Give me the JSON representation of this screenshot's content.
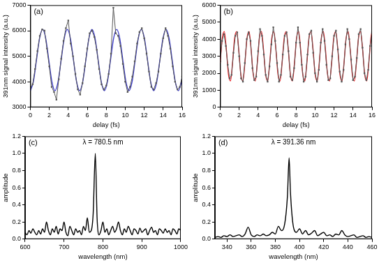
{
  "chart_data": [
    {
      "type": "line",
      "annotations": [
        "(a)"
      ],
      "x_label": "delay (fs)",
      "y_label": "391nm signal intensity (a.u.)",
      "xlim": [
        0,
        16
      ],
      "xticks": [
        0,
        2,
        4,
        6,
        8,
        10,
        12,
        14,
        16
      ],
      "ylim": [
        3000,
        7000
      ],
      "yticks": [
        3000,
        4000,
        5000,
        6000,
        7000
      ],
      "grid": false,
      "series": [
        {
          "color": "#555555",
          "marker": "square",
          "line_style": "solid",
          "x": [
            0,
            0.25,
            0.5,
            0.75,
            1,
            1.25,
            1.5,
            1.75,
            2,
            2.25,
            2.5,
            2.75,
            3,
            3.25,
            3.5,
            3.75,
            4,
            4.25,
            4.5,
            4.75,
            5,
            5.25,
            5.5,
            5.75,
            6,
            6.25,
            6.5,
            6.75,
            7,
            7.25,
            7.5,
            7.75,
            8,
            8.25,
            8.5,
            8.75,
            9,
            9.25,
            9.5,
            9.75,
            10,
            10.25,
            10.5,
            10.75,
            11,
            11.25,
            11.5,
            11.75,
            12,
            12.25,
            12.5,
            12.75,
            13,
            13.25,
            13.5,
            13.75,
            14,
            14.25,
            14.5,
            14.75,
            15,
            15.25,
            15.5,
            15.75,
            16
          ],
          "values": [
            3750,
            3900,
            4500,
            5200,
            5800,
            6050,
            6000,
            5300,
            4600,
            3800,
            3600,
            3300,
            4100,
            4900,
            5600,
            6100,
            6400,
            5500,
            5000,
            4300,
            3700,
            3500,
            3950,
            4600,
            5300,
            5900,
            6000,
            5750,
            5250,
            4500,
            3900,
            3700,
            3850,
            4300,
            5100,
            6900,
            5900,
            5800,
            5400,
            4700,
            4000,
            3600,
            3800,
            4200,
            4800,
            5500,
            5950,
            6100,
            5700,
            5100,
            4400,
            3800,
            3700,
            3950,
            4400,
            5100,
            5700,
            6100,
            5800,
            5300,
            4600,
            4000,
            3700,
            3800,
            4200
          ]
        },
        {
          "color": "#3c3cc8",
          "marker": "none",
          "line_style": "solid",
          "x": [
            0,
            0.325,
            0.65,
            0.975,
            1.3,
            1.625,
            1.95,
            2.275,
            2.6,
            2.925,
            3.25,
            3.575,
            3.9,
            4.225,
            4.55,
            4.875,
            5.2,
            5.525,
            5.85,
            6.175,
            6.5,
            6.825,
            7.15,
            7.475,
            7.8,
            8.125,
            8.45,
            8.775,
            9.1,
            9.425,
            9.75,
            10.075,
            10.4,
            10.725,
            11.05,
            11.375,
            11.7,
            12.025,
            12.35,
            12.675,
            13,
            13.325,
            13.65,
            13.975,
            14.3,
            14.625,
            14.95,
            15.275,
            15.6,
            15.925,
            16
          ],
          "values": [
            3650,
            4001,
            4850,
            5699,
            6050,
            5699,
            4850,
            4001,
            3650,
            4001,
            4850,
            5699,
            6050,
            5699,
            4850,
            4001,
            3650,
            4001,
            4850,
            5699,
            6050,
            5699,
            4850,
            4001,
            3650,
            4001,
            4850,
            5699,
            6050,
            5699,
            4850,
            4001,
            3650,
            4001,
            4850,
            5699,
            6050,
            5699,
            4850,
            4001,
            3650,
            4001,
            4850,
            5699,
            6050,
            5699,
            4850,
            4001,
            3650,
            4001,
            4168
          ]
        }
      ]
    },
    {
      "type": "line",
      "annotations": [
        "(b)"
      ],
      "x_label": "delay (fs)",
      "y_label": "391nm signal intensity (a.u.)",
      "xlim": [
        0,
        16
      ],
      "xticks": [
        0,
        2,
        4,
        6,
        8,
        10,
        12,
        14,
        16
      ],
      "ylim": [
        0,
        6000
      ],
      "yticks": [
        0,
        1000,
        2000,
        3000,
        4000,
        5000,
        6000
      ],
      "grid": false,
      "series": [
        {
          "color": "#555555",
          "marker": "square",
          "line_style": "solid",
          "x": [
            0,
            0.2,
            0.4,
            0.6,
            0.8,
            1,
            1.2,
            1.4,
            1.6,
            1.8,
            2,
            2.2,
            2.4,
            2.6,
            2.8,
            3,
            3.2,
            3.4,
            3.6,
            3.8,
            4,
            4.2,
            4.4,
            4.6,
            4.8,
            5,
            5.2,
            5.4,
            5.6,
            5.8,
            6,
            6.2,
            6.4,
            6.6,
            6.8,
            7,
            7.2,
            7.4,
            7.6,
            7.8,
            8,
            8.2,
            8.4,
            8.6,
            8.8,
            9,
            9.2,
            9.4,
            9.6,
            9.8,
            10,
            10.2,
            10.4,
            10.6,
            10.8,
            11,
            11.2,
            11.4,
            11.6,
            11.8,
            12,
            12.2,
            12.4,
            12.6,
            12.8,
            13,
            13.2,
            13.4,
            13.6,
            13.8,
            14,
            14.2,
            14.4,
            14.6,
            14.8,
            15,
            15.2,
            15.4,
            15.6,
            15.8,
            16
          ],
          "values": [
            2700,
            3900,
            4300,
            3600,
            2500,
            1700,
            1900,
            3200,
            4200,
            4400,
            3000,
            1700,
            1500,
            2600,
            4000,
            4400,
            3900,
            2300,
            1600,
            1800,
            3300,
            4600,
            4200,
            3100,
            1900,
            1500,
            2400,
            3700,
            4700,
            3900,
            2600,
            1500,
            1900,
            3100,
            4200,
            4400,
            3300,
            1800,
            1600,
            2300,
            3800,
            4700,
            3800,
            2500,
            1500,
            1800,
            3100,
            4300,
            4500,
            3200,
            2000,
            1500,
            2200,
            3800,
            4600,
            3900,
            2500,
            1600,
            1700,
            3000,
            4200,
            4500,
            3400,
            2100,
            1500,
            2200,
            3700,
            4600,
            4000,
            2800,
            1600,
            1800,
            2900,
            4300,
            4600,
            3500,
            2000,
            1600,
            2200,
            3600,
            4400
          ]
        },
        {
          "color": "#e8262a",
          "marker": "none",
          "line_style": "solid",
          "x": [
            0,
            0.2175,
            0.435,
            0.6525,
            0.87,
            1.0875,
            1.305,
            1.5225,
            1.74,
            1.9575,
            2.175,
            2.3925,
            2.61,
            2.8275,
            3.045,
            3.2625,
            3.48,
            3.6975,
            3.915,
            4.1325,
            4.35,
            4.5675,
            4.785,
            5.0025,
            5.22,
            5.4375,
            5.655,
            5.8725,
            6.09,
            6.3075,
            6.525,
            6.7425,
            6.96,
            7.1775,
            7.395,
            7.6125,
            7.83,
            8.0475,
            8.265,
            8.4825,
            8.7,
            8.9175,
            9.135,
            9.3525,
            9.57,
            9.7875,
            10.005,
            10.2225,
            10.44,
            10.6575,
            10.875,
            11.0925,
            11.31,
            11.5275,
            11.745,
            11.9625,
            12.18,
            12.3975,
            12.615,
            12.8325,
            13.05,
            13.2675,
            13.485,
            13.7025,
            13.92,
            14.1375,
            14.355,
            14.5725,
            14.79,
            15.0075,
            15.225,
            15.4425,
            15.66,
            15.8775,
            16
          ],
          "values": [
            2600,
            4051,
            4452,
            3400,
            1949,
            1548,
            2600,
            4051,
            4452,
            3400,
            1949,
            1548,
            2600,
            4051,
            4452,
            3400,
            1949,
            1548,
            2600,
            4051,
            4452,
            3400,
            1949,
            1548,
            2600,
            4051,
            4452,
            3400,
            1949,
            1548,
            2600,
            4051,
            4452,
            3400,
            1949,
            1548,
            2600,
            4051,
            4452,
            3400,
            1949,
            1548,
            2600,
            4051,
            4452,
            3400,
            1949,
            1548,
            2600,
            4051,
            4452,
            3400,
            1949,
            1548,
            2600,
            4051,
            4452,
            3400,
            1949,
            1548,
            2600,
            4051,
            4452,
            3400,
            1949,
            1548,
            2600,
            4051,
            4452,
            3400,
            1949,
            1548,
            2600,
            4051,
            4469
          ]
        }
      ]
    },
    {
      "type": "line",
      "annotations": [
        "(c)",
        "λ = 780.5 nm"
      ],
      "x_label": "wavelength (nm)",
      "y_label": "amplitude",
      "xlim": [
        600,
        1000
      ],
      "xticks": [
        600,
        700,
        800,
        900,
        1000
      ],
      "ylim": [
        0,
        1.2
      ],
      "yticks": [
        {
          "value": 0,
          "label": "0.0"
        },
        0.2,
        0.4,
        0.6,
        0.8,
        {
          "value": 1,
          "label": "1.0"
        },
        1.2
      ],
      "grid": false,
      "series": [
        {
          "color": "#000000",
          "marker": "none",
          "line_style": "solid",
          "x": [
            600,
            605,
            610,
            615,
            620,
            625,
            630,
            635,
            640,
            645,
            650,
            655,
            660,
            665,
            670,
            675,
            680,
            685,
            690,
            695,
            700,
            705,
            710,
            715,
            720,
            725,
            730,
            735,
            740,
            745,
            750,
            755,
            760,
            765,
            770,
            775,
            780.5,
            785,
            790,
            795,
            800,
            805,
            810,
            815,
            820,
            825,
            830,
            835,
            840,
            845,
            850,
            855,
            860,
            865,
            870,
            875,
            880,
            885,
            890,
            895,
            900,
            905,
            910,
            915,
            920,
            925,
            930,
            935,
            940,
            945,
            950,
            955,
            960,
            965,
            970,
            975,
            980,
            985,
            990,
            995,
            1000
          ],
          "values": [
            0.08,
            0.05,
            0.1,
            0.07,
            0.12,
            0.08,
            0.05,
            0.1,
            0.06,
            0.12,
            0.08,
            0.2,
            0.1,
            0.05,
            0.12,
            0.08,
            0.15,
            0.06,
            0.12,
            0.1,
            0.2,
            0.08,
            0.04,
            0.15,
            0.1,
            0.05,
            0.12,
            0.08,
            0.1,
            0.05,
            0.15,
            0.1,
            0.25,
            0.08,
            0.1,
            0.3,
            1.0,
            0.25,
            0.05,
            0.1,
            0.2,
            0.08,
            0.12,
            0.05,
            0.1,
            0.15,
            0.08,
            0.12,
            0.2,
            0.1,
            0.05,
            0.12,
            0.08,
            0.15,
            0.1,
            0.05,
            0.12,
            0.1,
            0.06,
            0.13,
            0.08,
            0.1,
            0.12,
            0.05,
            0.1,
            0.14,
            0.08,
            0.1,
            0.05,
            0.12,
            0.1,
            0.07,
            0.12,
            0.08,
            0.1,
            0.05,
            0.12,
            0.1,
            0.06,
            0.12,
            0.1
          ]
        }
      ]
    },
    {
      "type": "line",
      "annotations": [
        "(d)",
        "λ = 391.36 nm"
      ],
      "x_label": "wavelength (nm)",
      "y_label": "amplitude",
      "xlim": [
        330,
        460
      ],
      "xticks": [
        340,
        360,
        380,
        400,
        420,
        440,
        460
      ],
      "ylim": [
        0,
        1.2
      ],
      "yticks": [
        {
          "value": 0,
          "label": "0.0"
        },
        0.2,
        0.4,
        0.6,
        0.8,
        {
          "value": 1,
          "label": "1.0"
        },
        1.2
      ],
      "grid": false,
      "series": [
        {
          "color": "#000000",
          "marker": "none",
          "line_style": "solid",
          "x": [
            330,
            332.5,
            335,
            337.5,
            340,
            342.5,
            345,
            347.5,
            350,
            352.5,
            355,
            357.5,
            360,
            362.5,
            365,
            367.5,
            370,
            372.5,
            375,
            377.5,
            380,
            382.5,
            385,
            387.5,
            390,
            391.4,
            392.5,
            395,
            397.5,
            400,
            402.5,
            405,
            407.5,
            410,
            412.5,
            415,
            417.5,
            420,
            422.5,
            425,
            427.5,
            430,
            432.5,
            435,
            437.5,
            440,
            442.5,
            445,
            447.5,
            450,
            452.5,
            455,
            457.5,
            460
          ],
          "values": [
            0.02,
            0.03,
            0.02,
            0.04,
            0.03,
            0.05,
            0.03,
            0.04,
            0.05,
            0.03,
            0.06,
            0.14,
            0.05,
            0.03,
            0.05,
            0.04,
            0.06,
            0.04,
            0.05,
            0.08,
            0.06,
            0.15,
            0.1,
            0.16,
            0.5,
            0.95,
            0.55,
            0.14,
            0.08,
            0.12,
            0.06,
            0.1,
            0.05,
            0.07,
            0.1,
            0.04,
            0.06,
            0.08,
            0.04,
            0.05,
            0.03,
            0.06,
            0.05,
            0.1,
            0.05,
            0.03,
            0.04,
            0.05,
            0.02,
            0.03,
            0.04,
            0.02,
            0.03,
            0.02
          ]
        }
      ]
    }
  ]
}
